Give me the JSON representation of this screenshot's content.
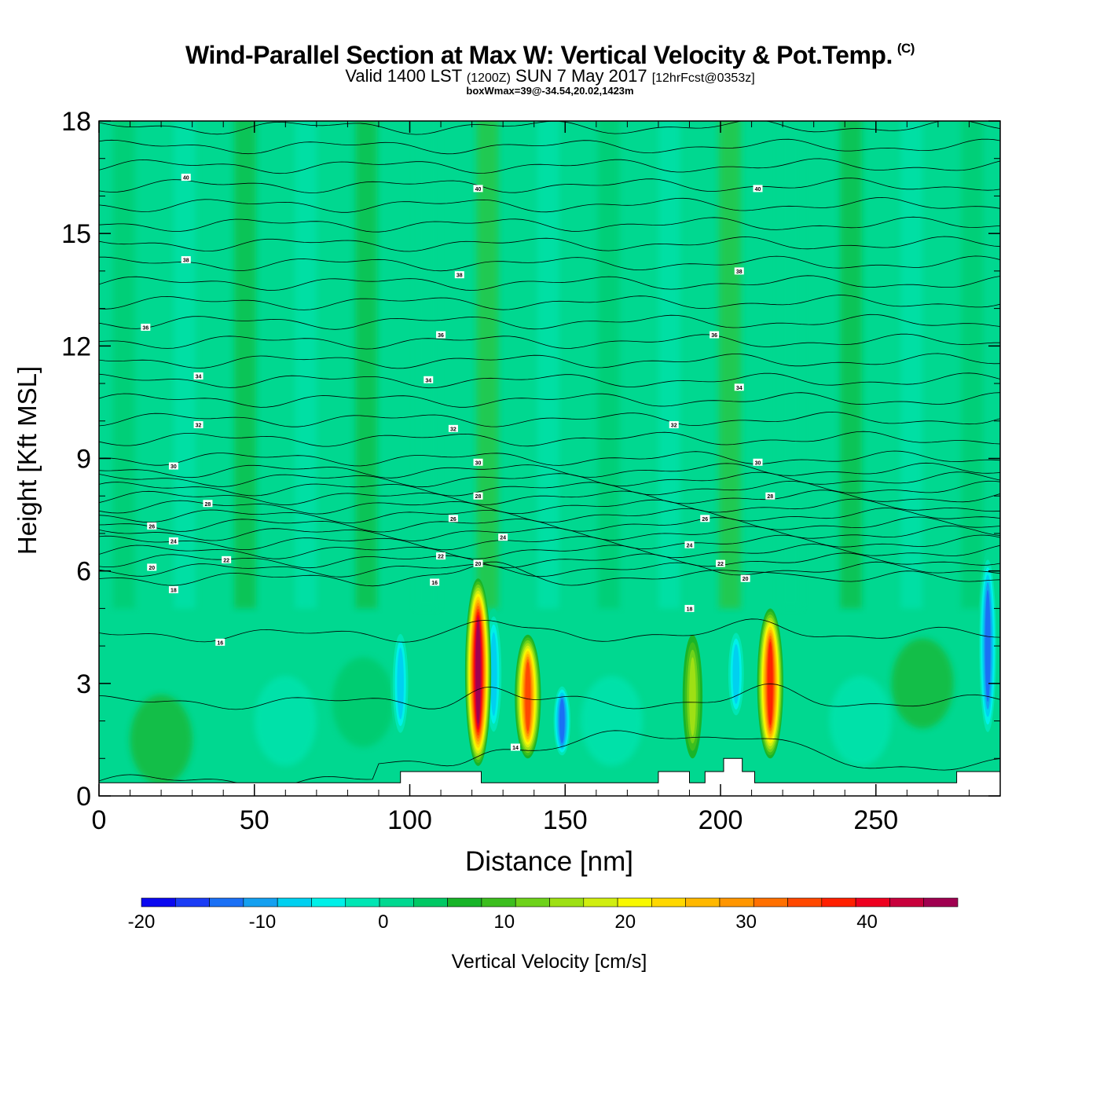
{
  "header": {
    "title": "Wind-Parallel Section at Max W: Vertical Velocity & Pot.Temp.",
    "copyright_mark": "(C)",
    "valid_prefix": "Valid 1400 LST",
    "valid_utc": "(1200Z)",
    "valid_date": "SUN 7 May 2017",
    "forecast": "[12hrFcst@0353z]",
    "box_info": "boxWmax=39@-34.54,20.02,1423m"
  },
  "chart_data": {
    "type": "heatmap",
    "xlabel": "Distance [nm]",
    "ylabel": "Height [Kft MSL]",
    "xlim": [
      0,
      290
    ],
    "ylim": [
      0,
      18
    ],
    "x_ticks": [
      "0",
      "50",
      "100",
      "150",
      "200",
      "250"
    ],
    "y_ticks": [
      "0",
      "3",
      "6",
      "9",
      "12",
      "15",
      "18"
    ],
    "colorbar": {
      "label": "Vertical Velocity [cm/s]",
      "min": -20,
      "max": 47.5,
      "step": 2.5,
      "tick_labels": [
        "-20",
        "-10",
        "0",
        "10",
        "20",
        "30",
        "40"
      ],
      "colors": [
        "#0a08f0",
        "#1a3cf5",
        "#1a70f5",
        "#14a0f0",
        "#00d0f0",
        "#00f0e8",
        "#00e6b4",
        "#00d890",
        "#00c864",
        "#18b428",
        "#3cbe1e",
        "#6ed21a",
        "#9ee014",
        "#d0ee10",
        "#f8f800",
        "#ffd800",
        "#ffb800",
        "#ff9600",
        "#ff7000",
        "#ff4800",
        "#ff2000",
        "#ee0020",
        "#c8003c",
        "#a00050"
      ]
    },
    "updraft_cores": [
      {
        "x": 122,
        "y_bottom": 0.8,
        "y_top": 5.8,
        "peak": 39
      },
      {
        "x": 138,
        "y_bottom": 1.0,
        "y_top": 4.3,
        "peak": 28
      },
      {
        "x": 216,
        "y_bottom": 1.0,
        "y_top": 5.0,
        "peak": 31
      },
      {
        "x": 191,
        "y_bottom": 1.0,
        "y_top": 4.3,
        "peak": 12
      }
    ],
    "downdraft_cores": [
      {
        "x": 97,
        "y_bottom": 1.5,
        "y_top": 4.5,
        "peak": -12
      },
      {
        "x": 127,
        "y_bottom": 1.5,
        "y_top": 5.0,
        "peak": -12
      },
      {
        "x": 149,
        "y_bottom": 1.0,
        "y_top": 3.0,
        "peak": -16
      },
      {
        "x": 205,
        "y_bottom": 2.0,
        "y_top": 4.5,
        "peak": -12
      },
      {
        "x": 286,
        "y_bottom": 1.5,
        "y_top": 6.5,
        "peak": -17
      }
    ],
    "isentrope_label_values": [
      "40",
      "38",
      "36",
      "34",
      "32",
      "30",
      "28",
      "26",
      "24",
      "22",
      "20",
      "18",
      "16",
      "14"
    ],
    "terrain": [
      {
        "x": 0,
        "y": 0.35
      },
      {
        "x": 97,
        "y": 0.35
      },
      {
        "x": 97,
        "y": 0.65
      },
      {
        "x": 123,
        "y": 0.65
      },
      {
        "x": 123,
        "y": 0.35
      },
      {
        "x": 180,
        "y": 0.35
      },
      {
        "x": 180,
        "y": 0.65
      },
      {
        "x": 190,
        "y": 0.65
      },
      {
        "x": 190,
        "y": 0.35
      },
      {
        "x": 195,
        "y": 0.35
      },
      {
        "x": 195,
        "y": 0.65
      },
      {
        "x": 201,
        "y": 0.65
      },
      {
        "x": 201,
        "y": 1.0
      },
      {
        "x": 207,
        "y": 1.0
      },
      {
        "x": 207,
        "y": 0.65
      },
      {
        "x": 211,
        "y": 0.65
      },
      {
        "x": 211,
        "y": 0.35
      },
      {
        "x": 276,
        "y": 0.35
      },
      {
        "x": 276,
        "y": 0.65
      },
      {
        "x": 290,
        "y": 0.65
      }
    ]
  }
}
